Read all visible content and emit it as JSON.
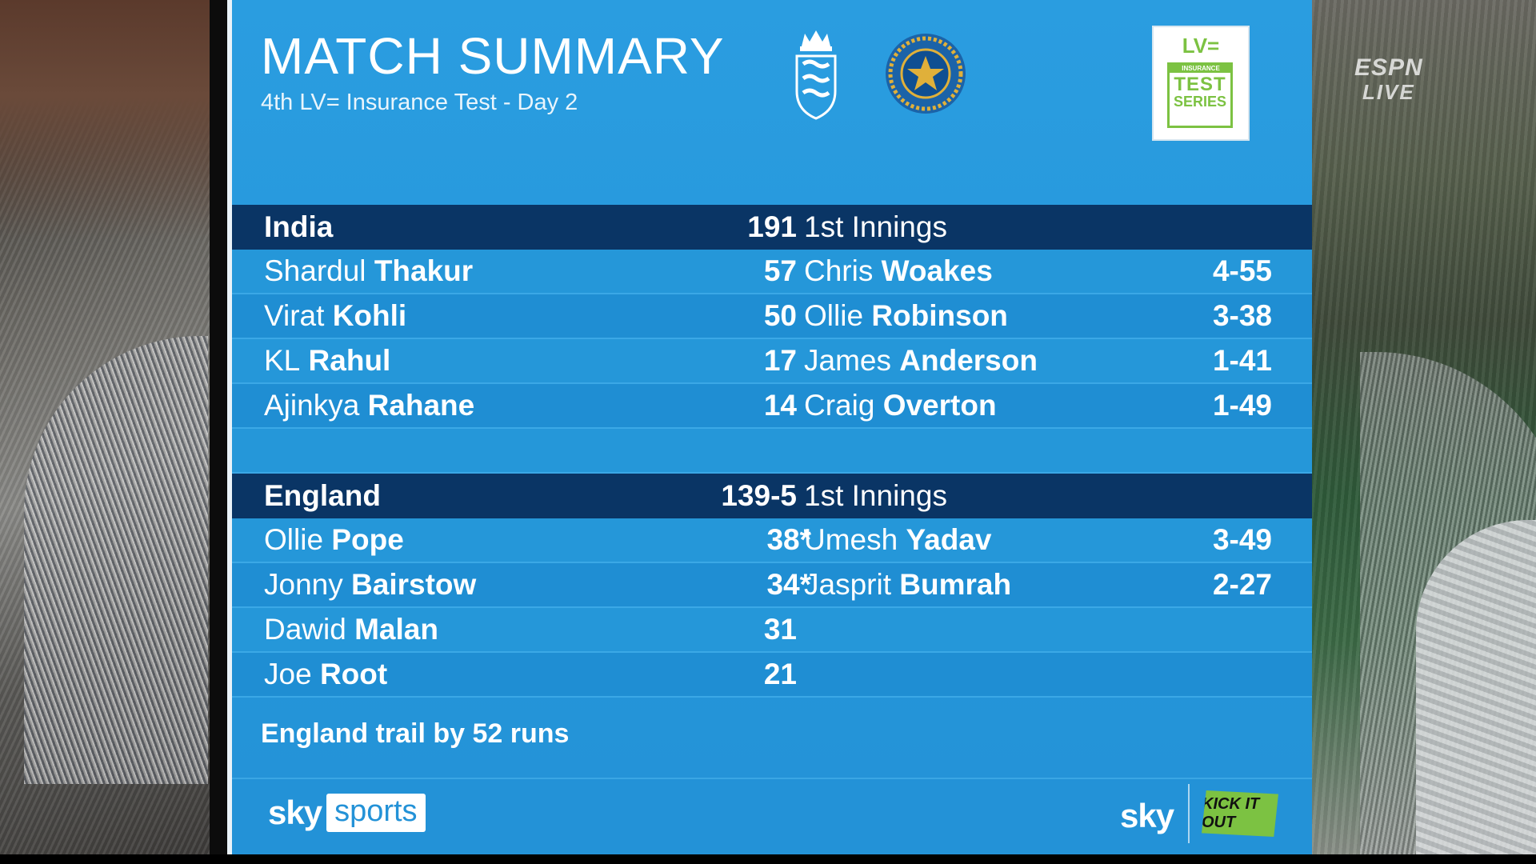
{
  "overlay": {
    "network": "ESPN",
    "live": "LIVE"
  },
  "header": {
    "title": "MATCH SUMMARY",
    "subtitle": "4th LV= Insurance Test - Day 2",
    "sponsor_badge": {
      "brand": "LV=",
      "insurance": "INSURANCE",
      "line1": "TEST",
      "line2": "SERIES"
    }
  },
  "innings": [
    {
      "team": "India",
      "total": "191",
      "innings_label": "1st Innings",
      "batting": [
        {
          "first": "Shardul",
          "last": "Thakur",
          "runs": "57"
        },
        {
          "first": "Virat",
          "last": "Kohli",
          "runs": "50"
        },
        {
          "first": "KL",
          "last": "Rahul",
          "runs": "17"
        },
        {
          "first": "Ajinkya",
          "last": "Rahane",
          "runs": "14"
        }
      ],
      "bowling": [
        {
          "first": "Chris",
          "last": "Woakes",
          "figures": "4-55"
        },
        {
          "first": "Ollie",
          "last": "Robinson",
          "figures": "3-38"
        },
        {
          "first": "James",
          "last": "Anderson",
          "figures": "1-41"
        },
        {
          "first": "Craig",
          "last": "Overton",
          "figures": "1-49"
        }
      ]
    },
    {
      "team": "England",
      "total": "139-5",
      "innings_label": "1st Innings",
      "batting": [
        {
          "first": "Ollie",
          "last": "Pope",
          "runs": "38*"
        },
        {
          "first": "Jonny",
          "last": "Bairstow",
          "runs": "34*"
        },
        {
          "first": "Dawid",
          "last": "Malan",
          "runs": "31"
        },
        {
          "first": "Joe",
          "last": "Root",
          "runs": "21"
        }
      ],
      "bowling": [
        {
          "first": "Umesh",
          "last": "Yadav",
          "figures": "3-49"
        },
        {
          "first": "Jasprit",
          "last": "Bumrah",
          "figures": "2-27"
        }
      ]
    }
  ],
  "status": "England trail by 52 runs",
  "footer": {
    "sky": "sky",
    "sports": "sports",
    "sky_right": "sky",
    "kick_it_out": "KICK IT OUT"
  },
  "colors": {
    "panel": "#2597d9",
    "header_bar": "#0a3565",
    "accent_green": "#7cc242"
  }
}
